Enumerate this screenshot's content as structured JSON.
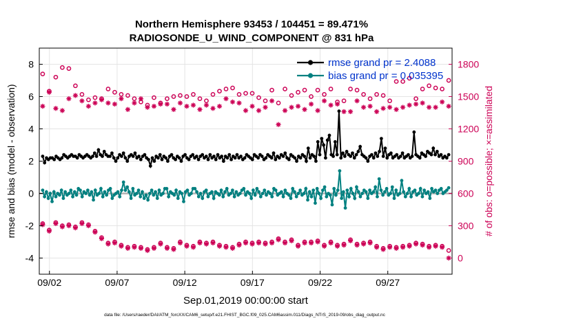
{
  "chart_data": {
    "type": "line",
    "title_line1": "Northern Hemisphere 93453 / 104451 = 89.471%",
    "title_line2": "RADIOSONDE_U_WIND_COMPONENT @ 831 hPa",
    "xlabel": "Sep.01,2019 00:00:00 start",
    "ylabel_left": "rmse and bias (model - observation)",
    "ylabel_right": "# of obs: o=possible; ×=assimilated",
    "footnote": "data file: /Users/raeder/DAI/ATM_forcXX/CAM6_setup/f.e21.FHIST_BGC.f09_025.CAM6assim.011/Diags_NTrS_2019-09/obs_diag_output.nc",
    "x_tick_labels": [
      "09/02",
      "09/07",
      "09/12",
      "09/17",
      "09/22",
      "09/27"
    ],
    "x_ticks_day": [
      2,
      7,
      12,
      17,
      22,
      27
    ],
    "xlim_day": [
      1.25,
      31.75
    ],
    "ylim_left": [
      -5,
      9
    ],
    "y_ticks_left": [
      -4,
      -2,
      0,
      2,
      4,
      6,
      8
    ],
    "ylim_right": [
      -150,
      1950
    ],
    "y_ticks_right": [
      0,
      300,
      600,
      900,
      1200,
      1500,
      1800
    ],
    "legend": [
      {
        "label": "rmse grand pr = 2.4088",
        "color": "#000000"
      },
      {
        "label": "bias grand pr = 0.035395",
        "color": "#008080"
      }
    ],
    "legend_text_color": "#0033cc",
    "colors": {
      "rmse": "#000000",
      "bias": "#008080",
      "obs": "#cc0055",
      "zero_line": "#b0b0b0"
    },
    "series": [
      {
        "name": "rmse",
        "axis": "left",
        "values": [
          2.3,
          1.9,
          2.2,
          2.1,
          2.2,
          2.2,
          2.1,
          2.3,
          2.2,
          2.1,
          2.2,
          2.4,
          2.3,
          2.2,
          2.3,
          2.4,
          2.3,
          2.3,
          2.2,
          2.4,
          2.3,
          2.2,
          2.3,
          2.4,
          2.3,
          2.2,
          2.3,
          2.5,
          2.3,
          2.7,
          2.4,
          2.3,
          2.6,
          2.4,
          2.3,
          2.3,
          2.5,
          2.2,
          2.0,
          2.2,
          2.4,
          2.3,
          2.5,
          2.2,
          2.0,
          2.3,
          2.4,
          2.3,
          2.5,
          2.2,
          2.3,
          2.1,
          2.3,
          2.4,
          2.2,
          2.1,
          1.7,
          2.2,
          2.0,
          2.3,
          2.2,
          2.4,
          2.1,
          2.3,
          2.2,
          2.0,
          2.3,
          2.4,
          2.2,
          2.1,
          2.3,
          2.2,
          2.0,
          2.3,
          2.4,
          2.2,
          2.1,
          2.3,
          2.4,
          2.2,
          2.3,
          2.1,
          2.3,
          2.4,
          2.2,
          2.3,
          2.1,
          2.4,
          2.2,
          2.3,
          2.1,
          2.4,
          2.2,
          2.3,
          2.0,
          2.3,
          2.2,
          2.4,
          2.1,
          2.3,
          2.2,
          2.4,
          2.2,
          2.3,
          2.1,
          2.2,
          2.4,
          2.3,
          2.2,
          2.1,
          2.4,
          2.3,
          2.2,
          2.4,
          2.3,
          2.1,
          2.2,
          2.4,
          2.3,
          2.2,
          2.5,
          2.1,
          2.3,
          2.2,
          2.4,
          2.3,
          2.5,
          2.2,
          2.1,
          2.4,
          2.3,
          2.2,
          2.0,
          2.3,
          2.2,
          2.4,
          2.3,
          2.0,
          2.8,
          2.2,
          2.4,
          2.3,
          2.0,
          3.2,
          2.4,
          3.4,
          3.0,
          2.2,
          3.3,
          3.6,
          2.4,
          2.3,
          3.2,
          2.4,
          5.1,
          2.2,
          2.5,
          2.3,
          2.6,
          2.4,
          2.3,
          2.5,
          2.2,
          2.4,
          2.6,
          2.9,
          2.4,
          2.3,
          2.2,
          2.0,
          2.3,
          2.4,
          2.2,
          2.5,
          2.3,
          2.6,
          3.4,
          2.3,
          2.8,
          2.2,
          2.4,
          2.5,
          2.2,
          2.3,
          2.4,
          2.2,
          2.3,
          2.5,
          2.2,
          2.3,
          2.4,
          2.2,
          2.3,
          3.8,
          2.4,
          2.3,
          2.2,
          2.5,
          2.4,
          2.3,
          2.6,
          2.5,
          2.4,
          2.8,
          2.4,
          2.6,
          2.3,
          2.4,
          2.2,
          2.3,
          2.2,
          2.4
        ]
      },
      {
        "name": "bias",
        "axis": "left",
        "values": [
          0.2,
          -0.2,
          0.1,
          -0.3,
          0.0,
          -0.5,
          0.1,
          -0.2,
          0.0,
          -0.1,
          0.2,
          -0.3,
          0.1,
          -0.1,
          0.0,
          0.2,
          -0.2,
          0.1,
          -0.1,
          0.3,
          0.2,
          -0.2,
          0.1,
          0.0,
          0.2,
          -0.1,
          0.1,
          -0.4,
          0.2,
          -0.1,
          0.0,
          0.3,
          -0.2,
          0.1,
          -0.1,
          0.2,
          0.3,
          -0.3,
          -0.1,
          0.0,
          0.1,
          -0.2,
          0.2,
          0.7,
          0.2,
          0.4,
          0.1,
          -0.3,
          0.3,
          -0.1,
          0.0,
          0.2,
          -0.2,
          0.1,
          -0.3,
          -0.1,
          -0.4,
          0.0,
          0.2,
          -0.1,
          0.1,
          -0.3,
          0.2,
          -0.1,
          0.0,
          0.3,
          0.3,
          -0.2,
          0.1,
          0.0,
          -0.1,
          0.2,
          -0.3,
          0.1,
          0.0,
          -0.5,
          0.1,
          0.2,
          -0.1,
          0.0,
          0.3,
          0.3,
          0.1,
          -0.2,
          0.0,
          -0.3,
          0.1,
          0.2,
          -0.2,
          0.0,
          0.1,
          -0.3,
          0.1,
          0.0,
          -0.1,
          0.2,
          -0.2,
          0.1,
          0.3,
          -0.1,
          0.0,
          0.2,
          -0.2,
          0.1,
          -0.1,
          0.0,
          0.2,
          0.3,
          -0.1,
          0.1,
          0.0,
          -0.3,
          0.2,
          -0.1,
          0.3,
          0.1,
          -0.2,
          0.0,
          0.2,
          -0.1,
          0.1,
          0.0,
          -0.2,
          0.3,
          0.2,
          -0.1,
          0.0,
          0.1,
          -0.2,
          0.2,
          0.0,
          -0.1,
          -0.3,
          0.3,
          0.1,
          -0.2,
          0.0,
          0.2,
          -0.1,
          0.0,
          0.3,
          -0.4,
          0.1,
          -0.2,
          0.2,
          -0.6,
          0.3,
          0.0,
          -0.3,
          0.2,
          0.4,
          -0.2,
          0.0,
          -0.1,
          -0.7,
          0.3,
          -0.1,
          0.2,
          1.4,
          -0.3,
          0.1,
          -0.9,
          0.2,
          -0.2,
          0.3,
          0.0,
          -0.3,
          0.4,
          0.1,
          -0.2,
          0.0,
          0.2,
          0.1,
          -0.3,
          0.2,
          0.0,
          0.1,
          0.4,
          -0.2,
          0.9,
          0.2,
          -0.1,
          0.1,
          0.3,
          -0.1,
          0.0,
          0.4,
          -0.3,
          0.2,
          -0.1,
          0.0,
          0.8,
          0.1,
          -0.2,
          0.0,
          0.3,
          -0.2,
          0.1,
          0.2,
          -0.1,
          0.0,
          0.3,
          -0.2,
          0.2,
          0.0,
          0.1,
          -0.3,
          0.3,
          0.1,
          0.2,
          0.0,
          0.2,
          0.3,
          0.0,
          0.1,
          0.2,
          0.35
        ]
      },
      {
        "name": "obs_possible",
        "axis": "right",
        "marker": "o",
        "values": [
          1710,
          1550,
          1680,
          1770,
          1760,
          1600,
          1520,
          1470,
          1490,
          1480,
          1570,
          1540,
          1520,
          1510,
          1480,
          1450,
          1420,
          1490,
          1440,
          1480,
          1500,
          1510,
          1500,
          1520,
          1480,
          1460,
          1520,
          1550,
          1570,
          1580,
          1520,
          1530,
          1530,
          1490,
          1460,
          1560,
          1440,
          1570,
          1510,
          1540,
          1560,
          1500,
          1560,
          1520,
          1570,
          1450,
          1460,
          1570,
          1560,
          1520,
          1480,
          1520,
          1510,
          1460,
          1640,
          1640,
          1670,
          1480,
          1570,
          1600,
          1580,
          1570,
          1650
        ]
      },
      {
        "name": "obs_assimilated",
        "axis": "right",
        "marker": "x",
        "values": [
          1410,
          1540,
          1390,
          1370,
          1480,
          1510,
          1460,
          1410,
          1440,
          1470,
          1440,
          1430,
          1480,
          1380,
          1440,
          1480,
          1400,
          1410,
          1430,
          1430,
          1380,
          1440,
          1410,
          1420,
          1380,
          1420,
          1390,
          1410,
          1480,
          1450,
          1440,
          1370,
          1410,
          1370,
          1400,
          1460,
          1240,
          1370,
          1400,
          1410,
          1380,
          1430,
          1370,
          1460,
          1420,
          1430,
          1360,
          1360,
          1460,
          1400,
          1410,
          1360,
          1390,
          1400,
          1380,
          1400,
          1420,
          1430,
          1440,
          1400,
          1400,
          1450,
          1410
        ]
      },
      {
        "name": "obs_possible_lower",
        "axis": "right",
        "marker": "o",
        "values": [
          320,
          260,
          330,
          300,
          310,
          290,
          330,
          310,
          250,
          190,
          140,
          150,
          120,
          100,
          110,
          100,
          80,
          100,
          140,
          100,
          90,
          150,
          120,
          110,
          150,
          140,
          150,
          120,
          110,
          100,
          130,
          150,
          140,
          150,
          140,
          150,
          180,
          150,
          170,
          120,
          150,
          150,
          160,
          120,
          150,
          120,
          130,
          170,
          130,
          140,
          150,
          110,
          90,
          110,
          100,
          110,
          120,
          140,
          130,
          110,
          120,
          110,
          70
        ]
      },
      {
        "name": "obs_assimilated_lower",
        "axis": "right",
        "marker": "x",
        "values": [
          310,
          250,
          320,
          290,
          300,
          280,
          320,
          300,
          240,
          180,
          130,
          140,
          110,
          90,
          100,
          90,
          70,
          90,
          130,
          90,
          80,
          140,
          110,
          100,
          140,
          130,
          140,
          110,
          100,
          90,
          120,
          140,
          130,
          140,
          130,
          140,
          170,
          140,
          160,
          110,
          140,
          140,
          150,
          110,
          140,
          110,
          120,
          160,
          120,
          130,
          140,
          100,
          80,
          100,
          90,
          100,
          110,
          130,
          120,
          100,
          110,
          100,
          0
        ]
      }
    ]
  }
}
